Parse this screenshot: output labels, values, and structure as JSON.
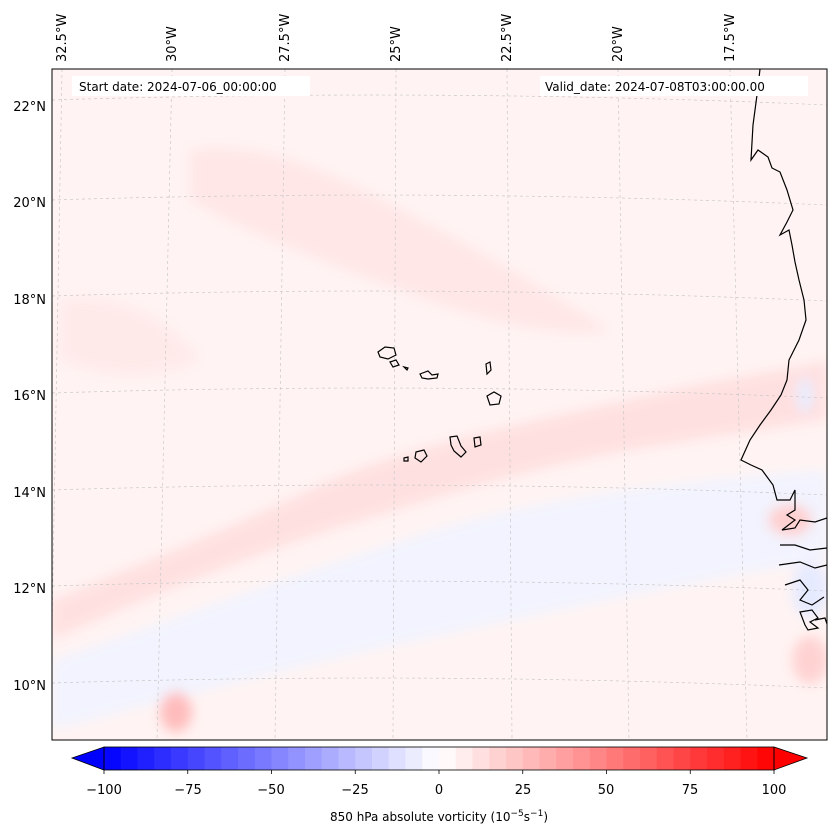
{
  "header": {
    "start_date": "Start date: 2024-07-06_00:00:00",
    "valid_date": "Valid_date: 2024-07-08T03:00:00.00"
  },
  "map": {
    "longitude_labels": [
      "32.5°W",
      "30°W",
      "27.5°W",
      "25°W",
      "22.5°W",
      "20°W",
      "17.5°W"
    ],
    "latitude_labels": [
      "22°N",
      "20°N",
      "18°N",
      "16°N",
      "14°N",
      "12°N",
      "10°N"
    ],
    "gridlines": true,
    "colors": {
      "background_weak_positive": "#fff4f3",
      "band_positive": "#ffdede",
      "weak_negative": "#f3f5ff",
      "coastline": "#000000"
    }
  },
  "colorbar": {
    "tick_labels": [
      "−100",
      "−75",
      "−50",
      "−25",
      "0",
      "25",
      "50",
      "75",
      "100"
    ],
    "label_prefix": "850 hPa absolute vorticity (10",
    "label_exp1": "−5",
    "label_mid": "s",
    "label_exp2": "−1",
    "label_suffix": ")",
    "min": -100,
    "max": 100,
    "colormap": "bwr"
  }
}
